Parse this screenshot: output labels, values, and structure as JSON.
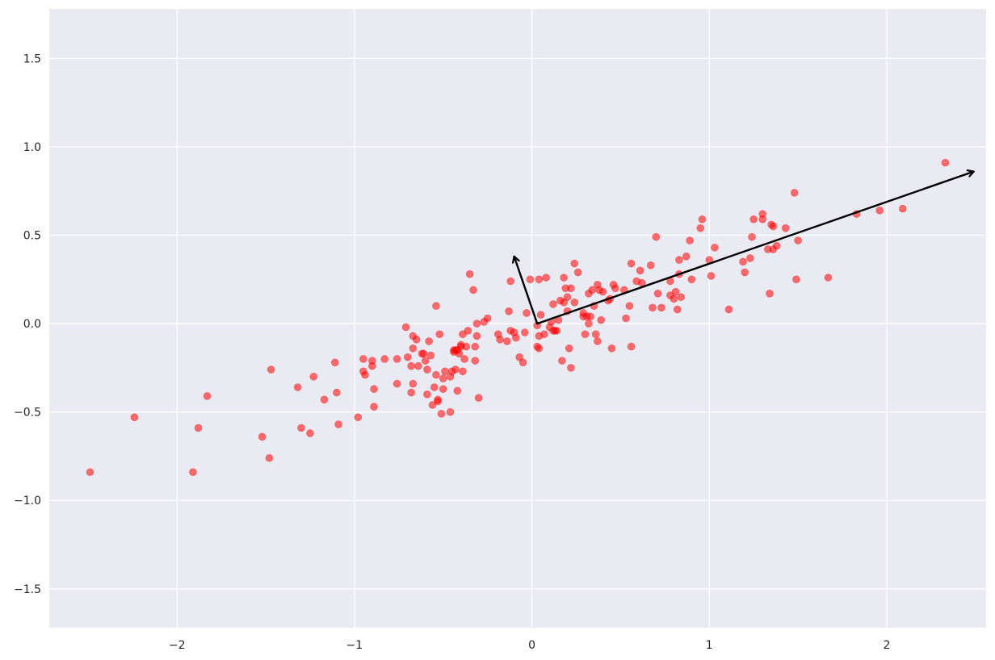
{
  "chart_data": {
    "type": "scatter",
    "title": "",
    "xlabel": "",
    "ylabel": "",
    "xlim": [
      -2.72,
      2.56
    ],
    "ylim": [
      -1.72,
      1.78
    ],
    "grid": true,
    "x_ticks": [
      {
        "value": -2,
        "label": "−2"
      },
      {
        "value": -1,
        "label": "−1"
      },
      {
        "value": 0,
        "label": "0"
      },
      {
        "value": 1,
        "label": "1"
      },
      {
        "value": 2,
        "label": "2"
      }
    ],
    "y_ticks": [
      {
        "value": -1.5,
        "label": "−1.5"
      },
      {
        "value": -1.0,
        "label": "−1.0"
      },
      {
        "value": -0.5,
        "label": "−0.5"
      },
      {
        "value": 0.0,
        "label": "0.0"
      },
      {
        "value": 0.5,
        "label": "0.5"
      },
      {
        "value": 1.0,
        "label": "1.0"
      },
      {
        "value": 1.5,
        "label": "1.5"
      }
    ],
    "colors": {
      "background": "#eaeaf2",
      "grid": "#ffffff",
      "points": "#ff0000",
      "arrows": "#000000"
    },
    "arrows": [
      {
        "from": [
          0.03,
          0.0
        ],
        "to": [
          2.49,
          0.86
        ]
      },
      {
        "from": [
          0.03,
          0.0
        ],
        "to": [
          -0.1,
          0.38
        ]
      }
    ],
    "points": [
      [
        -2.49,
        -0.84
      ],
      [
        -2.24,
        -0.53
      ],
      [
        -1.91,
        -0.84
      ],
      [
        -1.88,
        -0.59
      ],
      [
        -1.83,
        -0.41
      ],
      [
        -1.52,
        -0.64
      ],
      [
        -1.48,
        -0.76
      ],
      [
        -1.47,
        -0.26
      ],
      [
        -1.32,
        -0.36
      ],
      [
        -1.3,
        -0.59
      ],
      [
        -1.25,
        -0.62
      ],
      [
        -1.23,
        -0.3
      ],
      [
        -1.17,
        -0.43
      ],
      [
        -1.11,
        -0.22
      ],
      [
        -1.1,
        -0.39
      ],
      [
        -1.09,
        -0.57
      ],
      [
        -0.98,
        -0.53
      ],
      [
        -0.95,
        -0.27
      ],
      [
        -0.95,
        -0.2
      ],
      [
        -0.94,
        -0.29
      ],
      [
        -0.9,
        -0.21
      ],
      [
        -0.9,
        -0.24
      ],
      [
        -0.89,
        -0.37
      ],
      [
        -0.89,
        -0.47
      ],
      [
        -0.83,
        -0.2
      ],
      [
        -0.76,
        -0.2
      ],
      [
        -0.76,
        -0.34
      ],
      [
        -0.71,
        -0.02
      ],
      [
        -0.7,
        -0.19
      ],
      [
        -0.68,
        -0.24
      ],
      [
        -0.68,
        -0.39
      ],
      [
        -0.67,
        -0.07
      ],
      [
        -0.67,
        -0.14
      ],
      [
        -0.67,
        -0.34
      ],
      [
        -0.65,
        -0.09
      ],
      [
        -0.64,
        -0.24
      ],
      [
        -0.62,
        -0.17
      ],
      [
        -0.61,
        -0.17
      ],
      [
        -0.6,
        -0.21
      ],
      [
        -0.59,
        -0.26
      ],
      [
        -0.59,
        -0.4
      ],
      [
        -0.58,
        -0.1
      ],
      [
        -0.57,
        -0.18
      ],
      [
        -0.56,
        -0.46
      ],
      [
        -0.55,
        -0.36
      ],
      [
        -0.54,
        -0.29
      ],
      [
        -0.54,
        0.1
      ],
      [
        -0.53,
        -0.44
      ],
      [
        -0.53,
        -0.43
      ],
      [
        -0.52,
        -0.06
      ],
      [
        -0.51,
        -0.51
      ],
      [
        -0.5,
        -0.37
      ],
      [
        -0.5,
        -0.31
      ],
      [
        -0.49,
        -0.27
      ],
      [
        -0.46,
        -0.3
      ],
      [
        -0.46,
        -0.5
      ],
      [
        -0.45,
        -0.27
      ],
      [
        -0.44,
        -0.15
      ],
      [
        -0.44,
        -0.16
      ],
      [
        -0.43,
        -0.15
      ],
      [
        -0.43,
        -0.26
      ],
      [
        -0.42,
        -0.15
      ],
      [
        -0.42,
        -0.38
      ],
      [
        -0.41,
        -0.17
      ],
      [
        -0.4,
        -0.13
      ],
      [
        -0.4,
        -0.12
      ],
      [
        -0.39,
        -0.06
      ],
      [
        -0.39,
        -0.27
      ],
      [
        -0.38,
        -0.2
      ],
      [
        -0.37,
        -0.13
      ],
      [
        -0.36,
        -0.04
      ],
      [
        -0.35,
        0.28
      ],
      [
        -0.33,
        0.19
      ],
      [
        -0.32,
        -0.21
      ],
      [
        -0.32,
        -0.13
      ],
      [
        -0.31,
        -0.07
      ],
      [
        -0.31,
        0.0
      ],
      [
        -0.3,
        -0.42
      ],
      [
        -0.27,
        0.01
      ],
      [
        -0.25,
        0.03
      ],
      [
        -0.19,
        -0.06
      ],
      [
        -0.18,
        -0.09
      ],
      [
        -0.14,
        -0.1
      ],
      [
        -0.13,
        0.07
      ],
      [
        -0.12,
        0.24
      ],
      [
        -0.12,
        -0.04
      ],
      [
        -0.1,
        -0.05
      ],
      [
        -0.09,
        -0.08
      ],
      [
        -0.07,
        -0.19
      ],
      [
        -0.05,
        -0.22
      ],
      [
        -0.04,
        -0.05
      ],
      [
        -0.03,
        0.06
      ],
      [
        -0.01,
        0.25
      ],
      [
        0.03,
        -0.01
      ],
      [
        0.03,
        -0.13
      ],
      [
        0.04,
        -0.14
      ],
      [
        0.04,
        -0.07
      ],
      [
        0.04,
        0.25
      ],
      [
        0.05,
        0.05
      ],
      [
        0.07,
        -0.06
      ],
      [
        0.08,
        0.26
      ],
      [
        0.1,
        -0.02
      ],
      [
        0.11,
        0.01
      ],
      [
        0.12,
        -0.04
      ],
      [
        0.12,
        0.11
      ],
      [
        0.13,
        -0.04
      ],
      [
        0.14,
        -0.04
      ],
      [
        0.15,
        0.02
      ],
      [
        0.16,
        0.13
      ],
      [
        0.17,
        -0.21
      ],
      [
        0.18,
        0.26
      ],
      [
        0.18,
        0.12
      ],
      [
        0.19,
        0.2
      ],
      [
        0.2,
        0.15
      ],
      [
        0.2,
        0.07
      ],
      [
        0.21,
        -0.14
      ],
      [
        0.22,
        0.2
      ],
      [
        0.22,
        -0.25
      ],
      [
        0.24,
        0.34
      ],
      [
        0.24,
        0.12
      ],
      [
        0.26,
        0.29
      ],
      [
        0.29,
        0.06
      ],
      [
        0.29,
        0.04
      ],
      [
        0.3,
        -0.06
      ],
      [
        0.31,
        0.04
      ],
      [
        0.32,
        0.0
      ],
      [
        0.32,
        0.17
      ],
      [
        0.33,
        0.04
      ],
      [
        0.34,
        0.19
      ],
      [
        0.35,
        0.1
      ],
      [
        0.36,
        -0.06
      ],
      [
        0.37,
        -0.1
      ],
      [
        0.37,
        0.22
      ],
      [
        0.38,
        0.19
      ],
      [
        0.39,
        0.02
      ],
      [
        0.4,
        0.18
      ],
      [
        0.43,
        0.13
      ],
      [
        0.44,
        0.14
      ],
      [
        0.45,
        -0.14
      ],
      [
        0.46,
        0.22
      ],
      [
        0.47,
        0.2
      ],
      [
        0.52,
        0.19
      ],
      [
        0.53,
        0.03
      ],
      [
        0.55,
        0.1
      ],
      [
        0.56,
        0.34
      ],
      [
        0.56,
        -0.13
      ],
      [
        0.59,
        0.24
      ],
      [
        0.61,
        0.3
      ],
      [
        0.62,
        0.23
      ],
      [
        0.67,
        0.33
      ],
      [
        0.68,
        0.09
      ],
      [
        0.7,
        0.49
      ],
      [
        0.71,
        0.17
      ],
      [
        0.73,
        0.09
      ],
      [
        0.78,
        0.16
      ],
      [
        0.78,
        0.24
      ],
      [
        0.8,
        0.14
      ],
      [
        0.81,
        0.18
      ],
      [
        0.82,
        0.08
      ],
      [
        0.83,
        0.36
      ],
      [
        0.83,
        0.28
      ],
      [
        0.84,
        0.15
      ],
      [
        0.87,
        0.38
      ],
      [
        0.89,
        0.47
      ],
      [
        0.9,
        0.25
      ],
      [
        0.95,
        0.54
      ],
      [
        0.96,
        0.59
      ],
      [
        1.0,
        0.36
      ],
      [
        1.01,
        0.27
      ],
      [
        1.03,
        0.43
      ],
      [
        1.11,
        0.08
      ],
      [
        1.19,
        0.35
      ],
      [
        1.2,
        0.29
      ],
      [
        1.23,
        0.37
      ],
      [
        1.24,
        0.49
      ],
      [
        1.25,
        0.59
      ],
      [
        1.3,
        0.62
      ],
      [
        1.3,
        0.59
      ],
      [
        1.33,
        0.42
      ],
      [
        1.34,
        0.17
      ],
      [
        1.35,
        0.56
      ],
      [
        1.36,
        0.55
      ],
      [
        1.36,
        0.42
      ],
      [
        1.38,
        0.44
      ],
      [
        1.43,
        0.54
      ],
      [
        1.48,
        0.74
      ],
      [
        1.49,
        0.25
      ],
      [
        1.5,
        0.47
      ],
      [
        1.67,
        0.26
      ],
      [
        1.83,
        0.62
      ],
      [
        1.96,
        0.64
      ],
      [
        2.09,
        0.65
      ],
      [
        2.33,
        0.91
      ]
    ]
  }
}
